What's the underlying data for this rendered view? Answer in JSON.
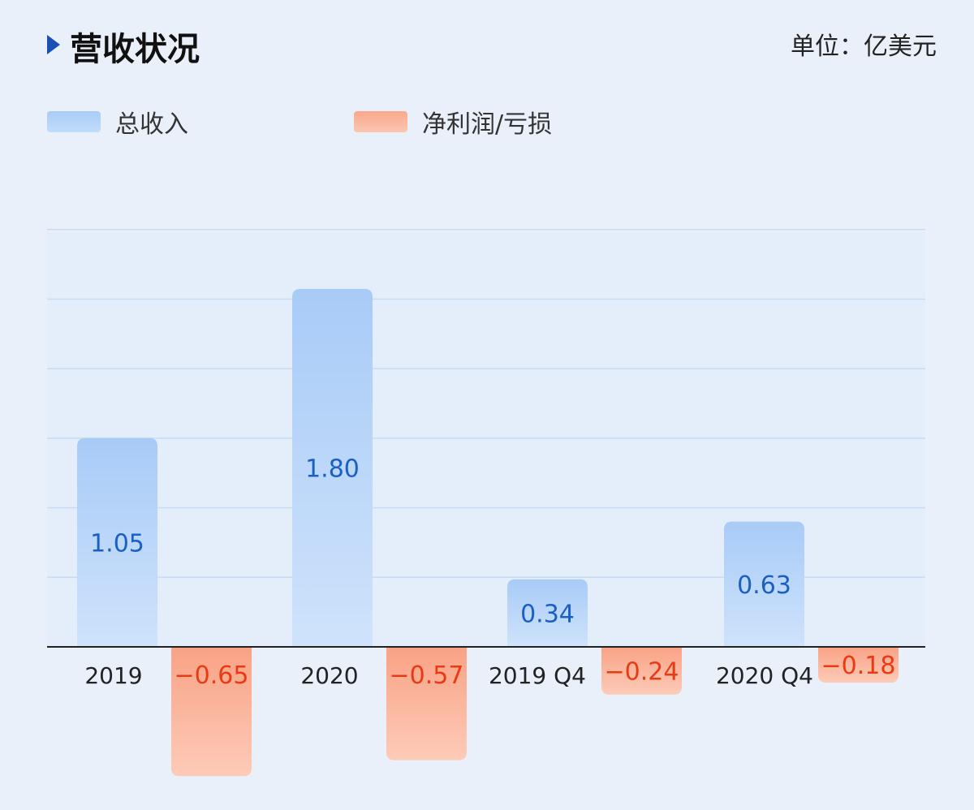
{
  "header": {
    "title": "营收状况",
    "unit": "单位：亿美元"
  },
  "legend": [
    {
      "label": "总收入",
      "color": "#b3d3f8"
    },
    {
      "label": "净利润/亏损",
      "color": "#fbb59d"
    }
  ],
  "chart_data": {
    "type": "bar",
    "categories": [
      "2019",
      "2020",
      "2019 Q4",
      "2020 Q4"
    ],
    "series": [
      {
        "name": "总收入",
        "values": [
          1.05,
          1.8,
          0.34,
          0.63
        ],
        "labels": [
          "1.05",
          "1.80",
          "0.34",
          "0.63"
        ],
        "color": "#b3d3f8",
        "label_color": "#1a5fc4"
      },
      {
        "name": "净利润/亏损",
        "values": [
          -0.65,
          -0.57,
          -0.24,
          -0.18
        ],
        "labels": [
          "−0.65",
          "−0.57",
          "−0.24",
          "−0.18"
        ],
        "color": "#fbb59d",
        "label_color": "#e83b14"
      }
    ],
    "grid": true,
    "legend_position": "top-left"
  }
}
